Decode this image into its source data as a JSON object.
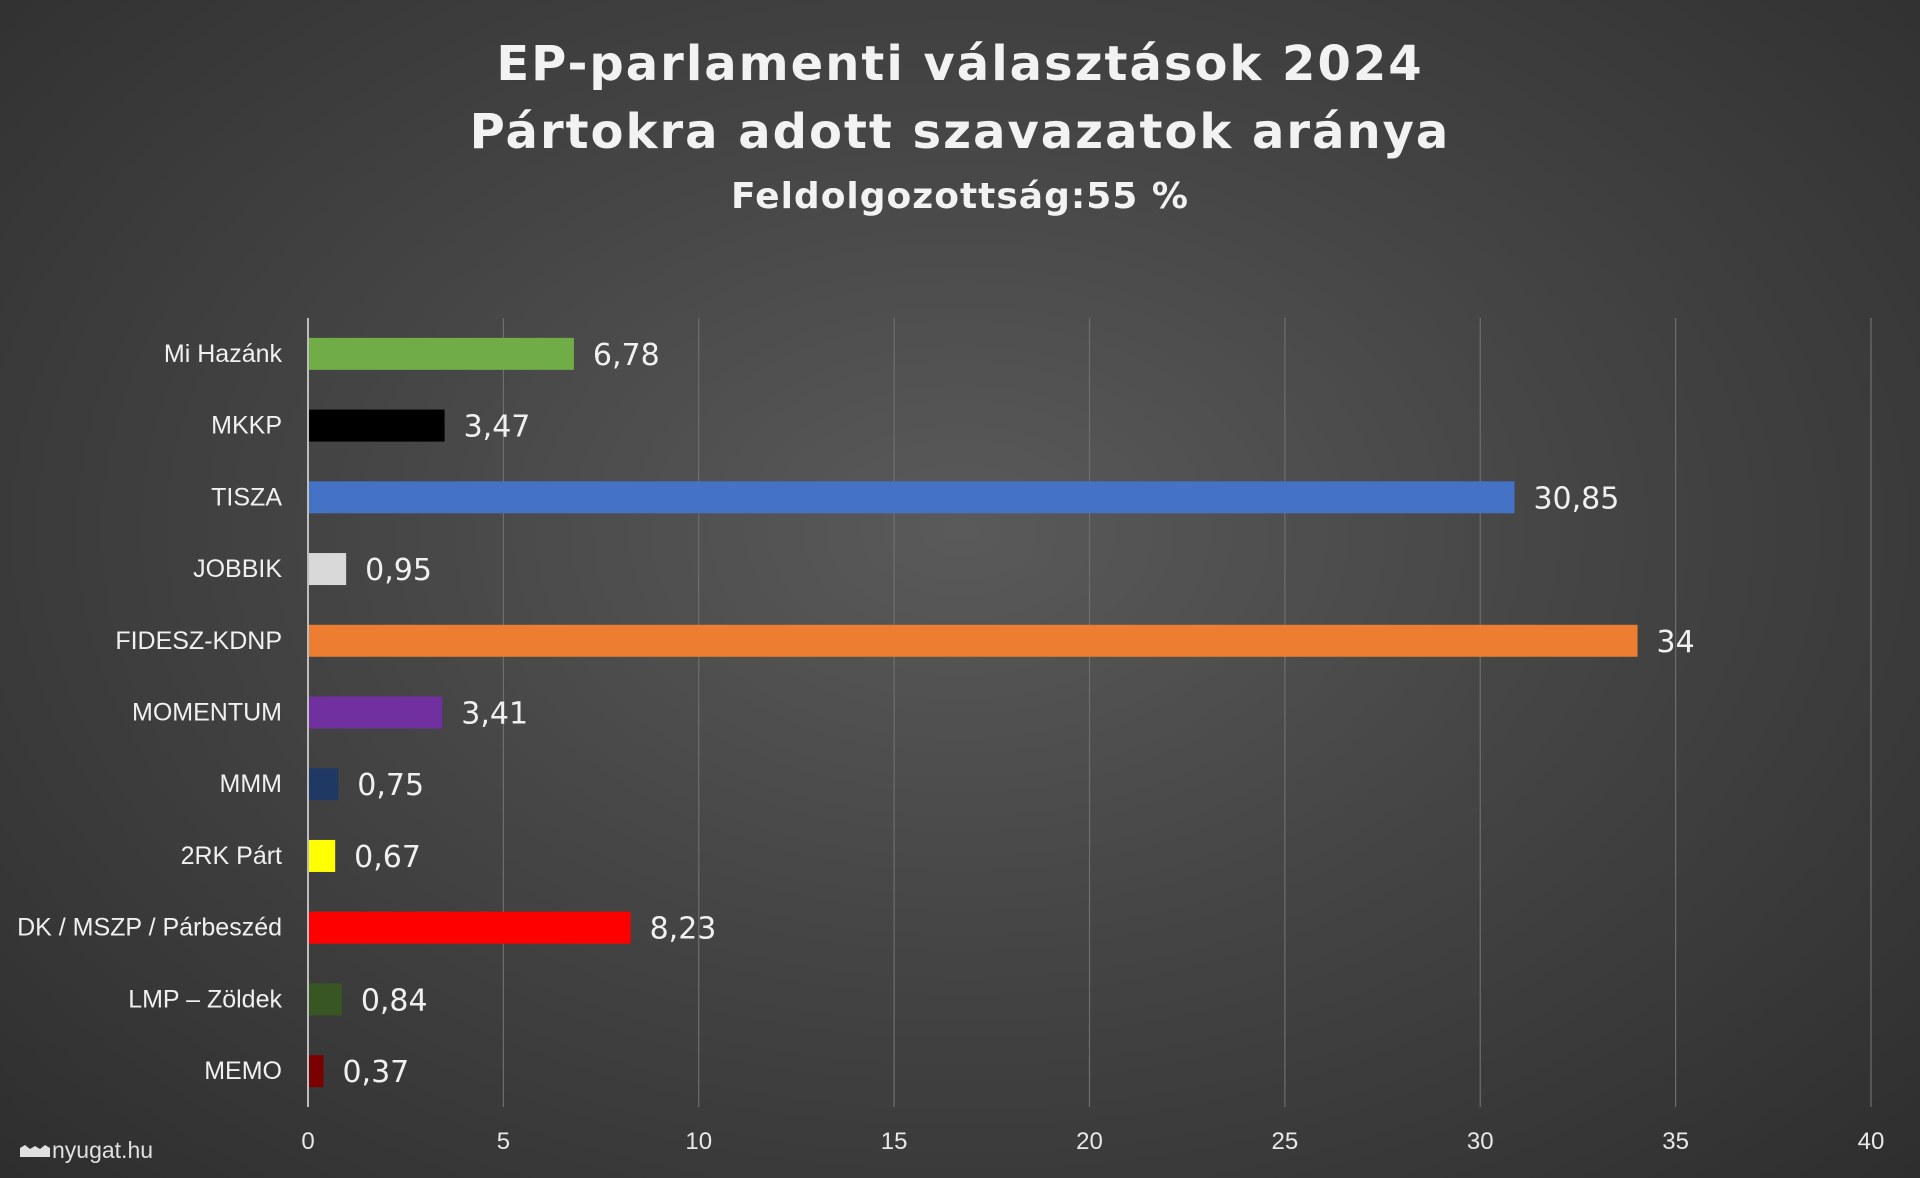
{
  "header": {
    "title_line1": "EP-parlamenti választások 2024",
    "title_line2": "Pártokra adott szavazatok aránya",
    "subtitle": "Feldolgozottság:55 %"
  },
  "watermark": "nyugat.hu",
  "chart_data": {
    "type": "bar",
    "orientation": "horizontal",
    "title": "EP-parlamenti választások 2024 Pártokra adott szavazatok aránya",
    "subtitle": "Feldolgozottság:55 %",
    "xlabel": "",
    "ylabel": "",
    "xlim": [
      0,
      40
    ],
    "xticks": [
      0,
      5,
      10,
      15,
      20,
      25,
      30,
      35,
      40
    ],
    "xtick_labels": [
      "0",
      "5",
      "10",
      "15",
      "20",
      "25",
      "30",
      "35",
      "40"
    ],
    "grid": "vertical",
    "legend": "none",
    "categories": [
      "Mi Hazánk",
      "MKKP",
      "TISZA",
      "JOBBIK",
      "FIDESZ-KDNP",
      "MOMENTUM",
      "MMM",
      "2RK Párt",
      "DK / MSZP / Párbeszéd",
      "LMP – Zöldek",
      "MEMO"
    ],
    "values": [
      6.78,
      3.47,
      30.85,
      0.95,
      34,
      3.41,
      0.75,
      0.67,
      8.23,
      0.84,
      0.37
    ],
    "value_labels": [
      "6,78",
      "3,47",
      "30,85",
      "0,95",
      "34",
      "3,41",
      "0,75",
      "0,67",
      "8,23",
      "0,84",
      "0,37"
    ],
    "colors": [
      "#70ad47",
      "#000000",
      "#4472c4",
      "#d9d9d9",
      "#ed7d31",
      "#7030a0",
      "#1f3864",
      "#ffff00",
      "#ff0000",
      "#375623",
      "#7b0000"
    ]
  }
}
